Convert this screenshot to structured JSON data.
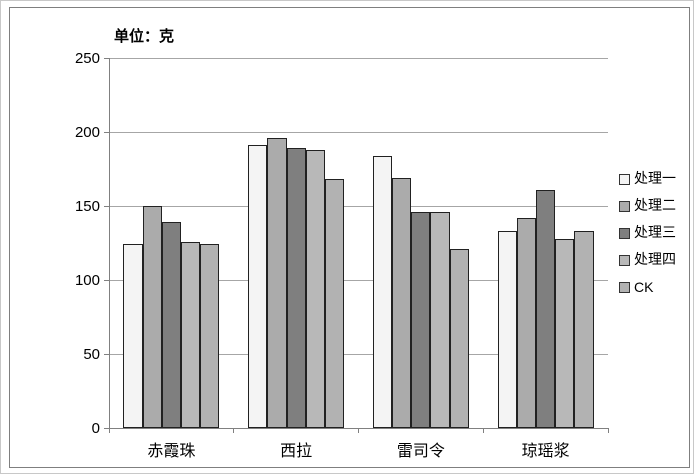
{
  "unit_label": "单位：克",
  "chart_data": {
    "type": "bar",
    "title": "单位：克",
    "xlabel": "",
    "ylabel": "单位：克",
    "categories": [
      "赤霞珠",
      "西拉",
      "雷司令",
      "琼瑶浆"
    ],
    "series": [
      {
        "name": "处理一",
        "color": "#f4f4f4",
        "values": [
          124,
          191,
          184,
          133
        ]
      },
      {
        "name": "处理二",
        "color": "#ababab",
        "values": [
          150,
          196,
          169,
          142
        ]
      },
      {
        "name": "处理三",
        "color": "#7f7f7f",
        "values": [
          139,
          189,
          146,
          161
        ]
      },
      {
        "name": "处理四",
        "color": "#b8b8b8",
        "values": [
          126,
          188,
          146,
          128
        ]
      },
      {
        "name": "CK",
        "color": "#b2b2b2",
        "values": [
          124,
          168,
          121,
          133
        ]
      }
    ],
    "ylim": [
      0,
      250
    ],
    "yticks": [
      0,
      50,
      100,
      150,
      200,
      250
    ],
    "grid": true,
    "legend_position": "right",
    "colors": {
      "gridline": "#a6a6a6",
      "axis": "#808080",
      "bar_border": "#212121",
      "chart_border": "#7f7f7f"
    }
  }
}
